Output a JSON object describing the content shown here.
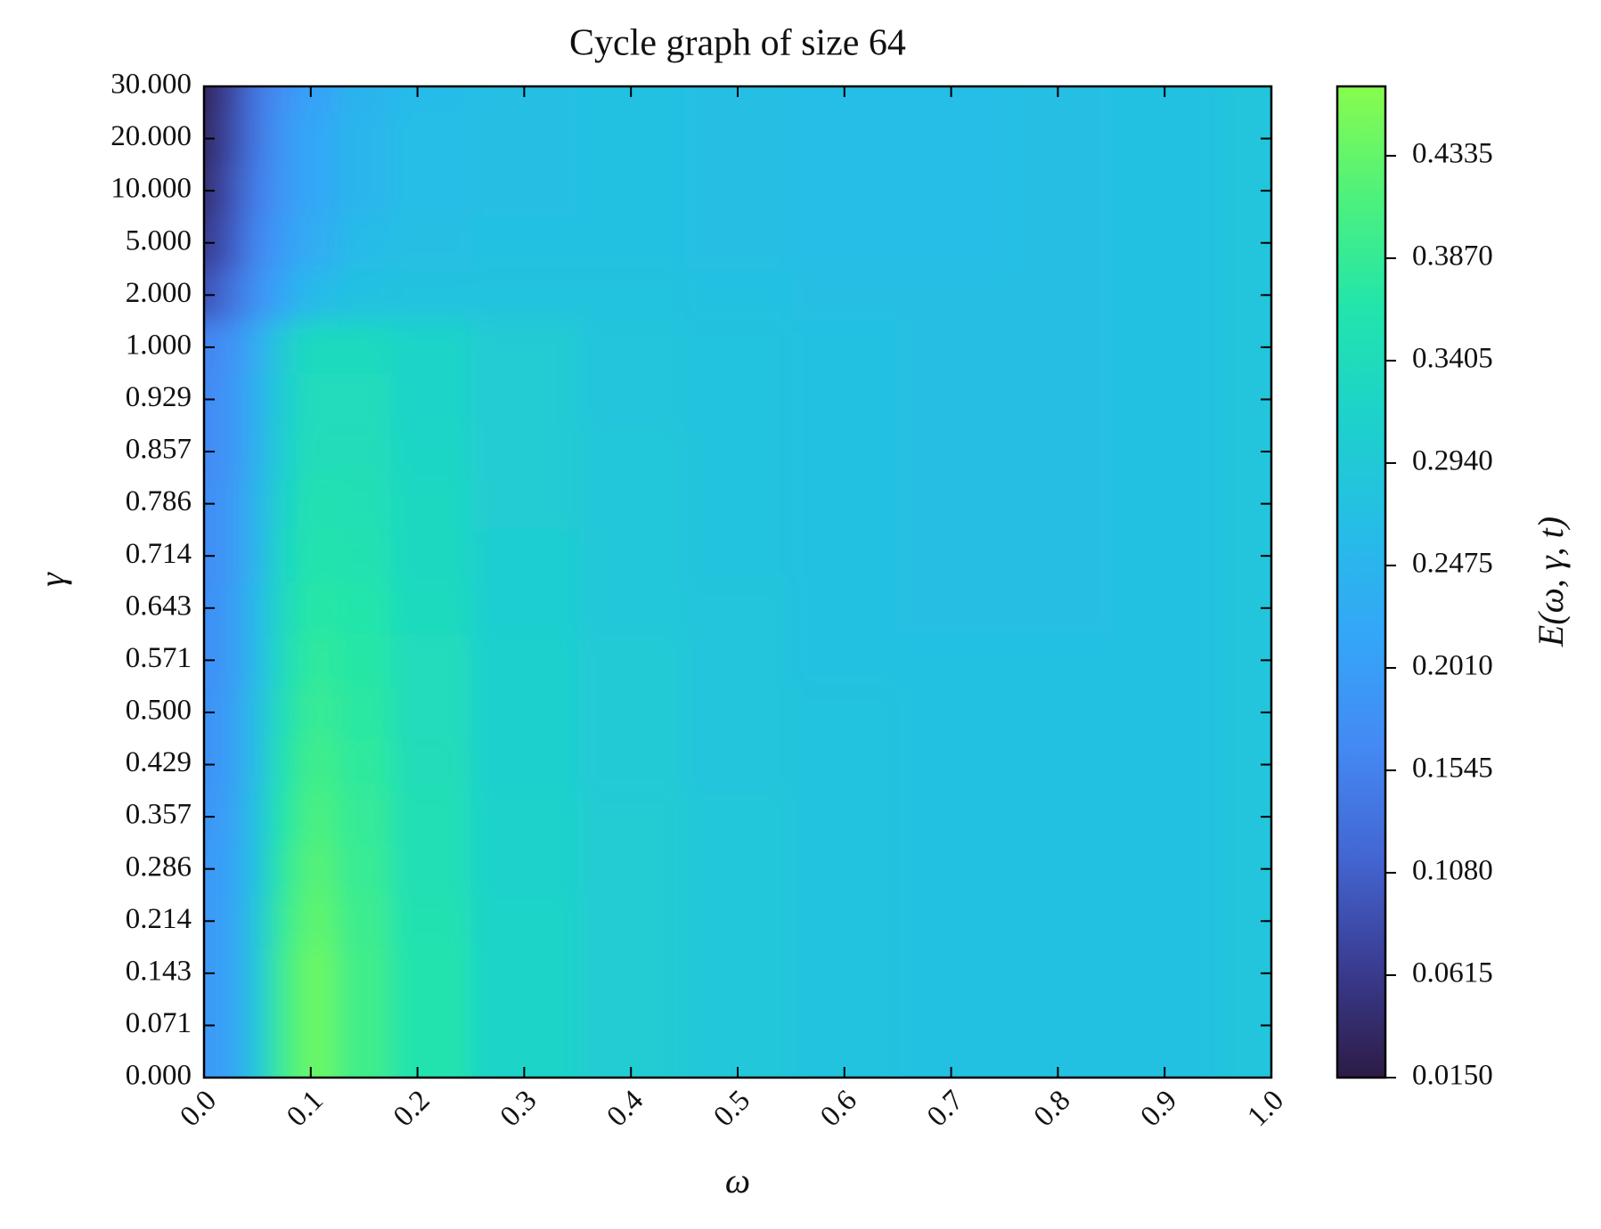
{
  "chart_data": {
    "type": "heatmap",
    "title": "Cycle graph of size 64",
    "x_label": "ω",
    "y_label": "γ",
    "colorbar_label": "E(ω, γ, t)",
    "x": [
      0,
      0.025,
      0.05,
      0.075,
      0.1,
      0.15,
      0.2,
      0.3,
      0.4,
      0.5,
      0.6,
      0.7,
      0.8,
      0.9,
      1.0
    ],
    "y": [
      "0.000",
      "0.071",
      "0.143",
      "0.214",
      "0.286",
      "0.357",
      "0.429",
      "0.500",
      "0.571",
      "0.643",
      "0.714",
      "0.786",
      "0.857",
      "0.929",
      "1.000",
      "2.000",
      "5.000",
      "10.000",
      "20.000",
      "30.000"
    ],
    "values": [
      [
        0.19,
        0.21,
        0.29,
        0.4,
        0.44,
        0.4,
        0.36,
        0.32,
        0.3,
        0.29,
        0.28,
        0.275,
        0.275,
        0.275,
        0.285
      ],
      [
        0.19,
        0.21,
        0.29,
        0.4,
        0.44,
        0.4,
        0.36,
        0.32,
        0.3,
        0.29,
        0.28,
        0.275,
        0.275,
        0.275,
        0.285
      ],
      [
        0.19,
        0.21,
        0.29,
        0.4,
        0.44,
        0.4,
        0.36,
        0.32,
        0.3,
        0.29,
        0.28,
        0.275,
        0.275,
        0.275,
        0.285
      ],
      [
        0.19,
        0.21,
        0.29,
        0.39,
        0.43,
        0.395,
        0.355,
        0.32,
        0.3,
        0.29,
        0.28,
        0.275,
        0.275,
        0.275,
        0.285
      ],
      [
        0.19,
        0.21,
        0.28,
        0.38,
        0.42,
        0.39,
        0.35,
        0.315,
        0.3,
        0.29,
        0.28,
        0.275,
        0.275,
        0.275,
        0.285
      ],
      [
        0.185,
        0.205,
        0.28,
        0.37,
        0.41,
        0.385,
        0.35,
        0.315,
        0.3,
        0.29,
        0.28,
        0.275,
        0.275,
        0.275,
        0.285
      ],
      [
        0.18,
        0.2,
        0.27,
        0.36,
        0.4,
        0.38,
        0.345,
        0.31,
        0.295,
        0.285,
        0.28,
        0.275,
        0.275,
        0.275,
        0.285
      ],
      [
        0.18,
        0.2,
        0.27,
        0.35,
        0.39,
        0.375,
        0.34,
        0.31,
        0.295,
        0.285,
        0.28,
        0.275,
        0.275,
        0.275,
        0.285
      ],
      [
        0.175,
        0.195,
        0.26,
        0.34,
        0.38,
        0.37,
        0.34,
        0.31,
        0.295,
        0.285,
        0.275,
        0.275,
        0.275,
        0.275,
        0.285
      ],
      [
        0.175,
        0.195,
        0.26,
        0.335,
        0.37,
        0.365,
        0.335,
        0.305,
        0.29,
        0.285,
        0.275,
        0.27,
        0.27,
        0.275,
        0.285
      ],
      [
        0.17,
        0.19,
        0.25,
        0.33,
        0.36,
        0.355,
        0.33,
        0.305,
        0.29,
        0.28,
        0.275,
        0.27,
        0.27,
        0.275,
        0.285
      ],
      [
        0.17,
        0.19,
        0.25,
        0.32,
        0.355,
        0.35,
        0.33,
        0.3,
        0.29,
        0.28,
        0.275,
        0.27,
        0.27,
        0.275,
        0.285
      ],
      [
        0.165,
        0.185,
        0.24,
        0.31,
        0.345,
        0.345,
        0.325,
        0.3,
        0.29,
        0.28,
        0.275,
        0.27,
        0.27,
        0.275,
        0.285
      ],
      [
        0.165,
        0.185,
        0.24,
        0.305,
        0.34,
        0.34,
        0.32,
        0.3,
        0.285,
        0.28,
        0.275,
        0.27,
        0.27,
        0.275,
        0.285
      ],
      [
        0.16,
        0.18,
        0.23,
        0.3,
        0.335,
        0.335,
        0.32,
        0.3,
        0.285,
        0.28,
        0.275,
        0.27,
        0.27,
        0.275,
        0.285
      ],
      [
        0.09,
        0.13,
        0.18,
        0.22,
        0.26,
        0.275,
        0.28,
        0.28,
        0.28,
        0.275,
        0.27,
        0.27,
        0.27,
        0.275,
        0.285
      ],
      [
        0.06,
        0.1,
        0.16,
        0.2,
        0.23,
        0.26,
        0.27,
        0.275,
        0.275,
        0.27,
        0.265,
        0.265,
        0.27,
        0.275,
        0.285
      ],
      [
        0.04,
        0.09,
        0.15,
        0.19,
        0.22,
        0.25,
        0.265,
        0.27,
        0.275,
        0.27,
        0.265,
        0.265,
        0.27,
        0.275,
        0.285
      ],
      [
        0.03,
        0.08,
        0.14,
        0.19,
        0.22,
        0.25,
        0.265,
        0.27,
        0.275,
        0.27,
        0.265,
        0.265,
        0.27,
        0.275,
        0.285
      ],
      [
        0.025,
        0.075,
        0.14,
        0.18,
        0.21,
        0.245,
        0.26,
        0.27,
        0.275,
        0.27,
        0.265,
        0.265,
        0.27,
        0.275,
        0.285
      ]
    ],
    "xlim": [
      0,
      1
    ],
    "xticks": [
      {
        "value": 0,
        "label": "0.0"
      },
      0.1,
      0.2,
      0.3,
      0.4,
      0.5,
      0.6,
      0.7,
      0.8,
      0.9,
      {
        "value": 1,
        "label": "1.0"
      }
    ],
    "zlim": [
      0.015,
      0.465
    ],
    "zticks": [
      {
        "value": 0.015,
        "label": "0.0150"
      },
      0.0615,
      {
        "value": 0.108,
        "label": "0.1080"
      },
      0.1545,
      {
        "value": 0.201,
        "label": "0.2010"
      },
      0.2475,
      {
        "value": 0.294,
        "label": "0.2940"
      },
      0.3405,
      {
        "value": 0.387,
        "label": "0.3870"
      },
      0.4335
    ],
    "colormap": [
      "#2d1b45",
      "#3a3c91",
      "#4366d2",
      "#4489f4",
      "#34a6f8",
      "#26bde6",
      "#1dd2cb",
      "#22e5ab",
      "#4ef17c",
      "#88fc4d"
    ]
  }
}
